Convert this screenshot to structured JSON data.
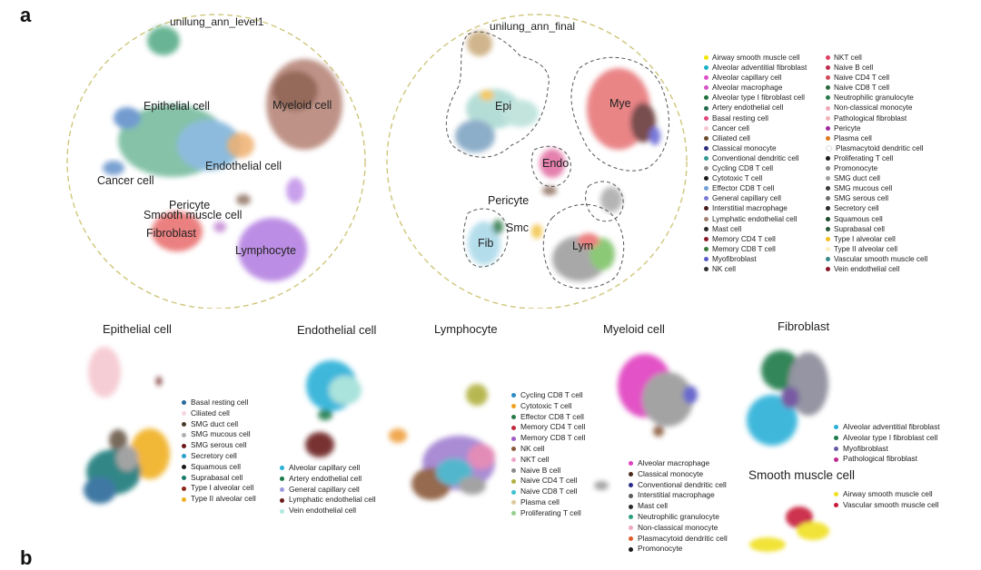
{
  "panel_labels": {
    "a": "a",
    "b": "b"
  },
  "umap_level1": {
    "title": "unilung_ann_level1",
    "labels": [
      "Epithelial cell",
      "Myeloid cell",
      "Endothelial cell",
      "Cancer cell",
      "Pericyte",
      "Smooth muscle cell",
      "Fibroblast",
      "Lymphocyte"
    ]
  },
  "umap_final": {
    "title": "unilung_ann_final",
    "labels": [
      "Epi",
      "Mye",
      "Endo",
      "Pericyte",
      "Smc",
      "Fib",
      "Lym"
    ]
  },
  "main_legend": {
    "col1": [
      {
        "label": "Airway smooth muscle cell",
        "color": "#f2e600"
      },
      {
        "label": "Alveolar adventitial fibroblast",
        "color": "#1ab2c9"
      },
      {
        "label": "Alveolar capillary cell",
        "color": "#e14fc8"
      },
      {
        "label": "Alveolar macrophage",
        "color": "#d655c4"
      },
      {
        "label": "Alveolar type I fibroblast cell",
        "color": "#1f6e3a"
      },
      {
        "label": "Artery endothelial cell",
        "color": "#1c6b4a"
      },
      {
        "label": "Basal resting cell",
        "color": "#e0477a"
      },
      {
        "label": "Cancer cell",
        "color": "#f7c6cf"
      },
      {
        "label": "Ciliated cell",
        "color": "#6b4a2a"
      },
      {
        "label": "Classical monocyte",
        "color": "#2b2b80"
      },
      {
        "label": "Conventional dendritic cell",
        "color": "#2f9a93"
      },
      {
        "label": "Cycling CD8 T cell",
        "color": "#8a8a8a"
      },
      {
        "label": "Cytotoxic T cell",
        "color": "#1a1a1a"
      },
      {
        "label": "Effector CD8 T cell",
        "color": "#6fa0d8"
      },
      {
        "label": "General capillary cell",
        "color": "#7a7ad6"
      },
      {
        "label": "Interstitial macrophage",
        "color": "#4a1a1a"
      },
      {
        "label": "Lymphatic endothelial cell",
        "color": "#a08070"
      },
      {
        "label": "Mast cell",
        "color": "#2a2a2a"
      },
      {
        "label": "Memory CD4 T cell",
        "color": "#8a1a2a"
      },
      {
        "label": "Memory CD8 T cell",
        "color": "#3a7a3a"
      },
      {
        "label": "Myofibroblast",
        "color": "#5a5ac8"
      },
      {
        "label": "NK cell",
        "color": "#333333"
      }
    ],
    "col2": [
      {
        "label": "NKT cell",
        "color": "#e04060"
      },
      {
        "label": "Naive B cell",
        "color": "#c02a4a"
      },
      {
        "label": "Naive CD4 T cell",
        "color": "#d04a5a"
      },
      {
        "label": "Naive CD8 T cell",
        "color": "#2a6a3a"
      },
      {
        "label": "Neutrophilic granulocyte",
        "color": "#2a7a4a"
      },
      {
        "label": "Non-classical monocyte",
        "color": "#f0a8b8"
      },
      {
        "label": "Pathological fibroblast",
        "color": "#f4b0b8"
      },
      {
        "label": "Pericyte",
        "color": "#a02aa0"
      },
      {
        "label": "Plasma cell",
        "color": "#e07a20"
      },
      {
        "label": "Plasmacytoid dendritic cell",
        "color": "#ffffff"
      },
      {
        "label": "Proliferating T cell",
        "color": "#1a1a1a"
      },
      {
        "label": "Promonocyte",
        "color": "#888888"
      },
      {
        "label": "SMG duct cell",
        "color": "#a0a0a0"
      },
      {
        "label": "SMG mucous cell",
        "color": "#3a3a3a"
      },
      {
        "label": "SMG serous cell",
        "color": "#707070"
      },
      {
        "label": "Secretory cell",
        "color": "#2a2a2a"
      },
      {
        "label": "Squamous cell",
        "color": "#1a4a2a"
      },
      {
        "label": "Suprabasal cell",
        "color": "#2a5a3a"
      },
      {
        "label": "Type I alveolar cell",
        "color": "#f0c020"
      },
      {
        "label": "Type II alveolar cell",
        "color": "#fff0c0"
      },
      {
        "label": "Vascular smooth muscle cell",
        "color": "#3a8a8a"
      },
      {
        "label": "Vein endothelial cell",
        "color": "#8a1a2a"
      }
    ]
  },
  "subpanels": {
    "epithelial": {
      "title": "Epithelial cell",
      "legend": [
        {
          "label": "Basal resting cell",
          "color": "#2a6a9a"
        },
        {
          "label": "Ciliated cell",
          "color": "#f7d6dc"
        },
        {
          "label": "SMG duct cell",
          "color": "#4a3a2a"
        },
        {
          "label": "SMG mucous cell",
          "color": "#b0b0b0"
        },
        {
          "label": "SMG serous cell",
          "color": "#6a1a1a"
        },
        {
          "label": "Secretory cell",
          "color": "#2aa0c8"
        },
        {
          "label": "Squamous cell",
          "color": "#1a1a1a"
        },
        {
          "label": "Suprabasal cell",
          "color": "#1a7a6a"
        },
        {
          "label": "Type I alveolar cell",
          "color": "#8a2a1a"
        },
        {
          "label": "Type II alveolar cell",
          "color": "#f0b020"
        }
      ]
    },
    "endothelial": {
      "title": "Endothelial cell",
      "legend": [
        {
          "label": "Alveolar capillary cell",
          "color": "#2ab0d8"
        },
        {
          "label": "Artery endothelial cell",
          "color": "#1a7a4a"
        },
        {
          "label": "General capillary cell",
          "color": "#9a9ae0"
        },
        {
          "label": "Lymphatic endothelial cell",
          "color": "#6a1a1a"
        },
        {
          "label": "Vein endothelial cell",
          "color": "#b0e8e0"
        }
      ]
    },
    "lymphocyte": {
      "title": "Lymphocyte",
      "legend": [
        {
          "label": "Cycling CD8 T cell",
          "color": "#2a8ac8"
        },
        {
          "label": "Cytotoxic T cell",
          "color": "#f0a020"
        },
        {
          "label": "Effector CD8 T cell",
          "color": "#2a7a4a"
        },
        {
          "label": "Memory CD4 T cell",
          "color": "#c02a3a"
        },
        {
          "label": "Memory CD8 T cell",
          "color": "#a05ac8"
        },
        {
          "label": "NK cell",
          "color": "#8a5a3a"
        },
        {
          "label": "NKT cell",
          "color": "#f0a8c8"
        },
        {
          "label": "Naive B cell",
          "color": "#8a8a8a"
        },
        {
          "label": "Naive CD4 T cell",
          "color": "#b0b040"
        },
        {
          "label": "Naive CD8 T cell",
          "color": "#40c0d0"
        },
        {
          "label": "Plasma cell",
          "color": "#e0c8a0"
        },
        {
          "label": "Proliferating T cell",
          "color": "#9ad090"
        }
      ]
    },
    "myeloid": {
      "title": "Myeloid cell",
      "legend": [
        {
          "label": "Alveolar macrophage",
          "color": "#e040c0"
        },
        {
          "label": "Classical monocyte",
          "color": "#4a2a1a"
        },
        {
          "label": "Conventional dendritic cell",
          "color": "#2a2a8a"
        },
        {
          "label": "Interstitial macrophage",
          "color": "#5a5a5a"
        },
        {
          "label": "Mast cell",
          "color": "#2a2a2a"
        },
        {
          "label": "Neutrophilic granulocyte",
          "color": "#2aa080"
        },
        {
          "label": "Non-classical monocyte",
          "color": "#f0a8c0"
        },
        {
          "label": "Plasmacytoid dendritic cell",
          "color": "#e05a2a"
        },
        {
          "label": "Promonocyte",
          "color": "#1a1a1a"
        }
      ]
    },
    "fibroblast": {
      "title": "Fibroblast",
      "legend": [
        {
          "label": "Alveolar adventitial fibroblast",
          "color": "#2ab0d8"
        },
        {
          "label": "Alveolar type I fibroblast cell",
          "color": "#1a7a4a"
        },
        {
          "label": "Myofibroblast",
          "color": "#6a5aa0"
        },
        {
          "label": "Pathological fibroblast",
          "color": "#c02a8a"
        }
      ]
    },
    "smooth_muscle": {
      "title": "Smooth muscle cell",
      "legend": [
        {
          "label": "Airway smooth muscle cell",
          "color": "#f0e020"
        },
        {
          "label": "Vascular smooth muscle cell",
          "color": "#c81a3a"
        }
      ]
    }
  }
}
